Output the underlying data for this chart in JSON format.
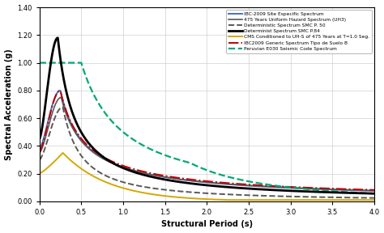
{
  "xlabel": "Structural Period (s)",
  "ylabel": "Spectral Acceleration (g)",
  "xlim": [
    0.0,
    4.0
  ],
  "ylim": [
    0.0,
    1.4
  ],
  "xticks": [
    0.0,
    0.5,
    1.0,
    1.5,
    2.0,
    2.5,
    3.0,
    3.5,
    4.0
  ],
  "yticks": [
    0.0,
    0.2,
    0.4,
    0.6,
    0.8,
    1.0,
    1.2,
    1.4
  ],
  "legend_entries": [
    "IBC-2009 Site Especific Spectrum",
    "475 Years Uniform Hazard Spectrum (UH3)",
    "Deterministic Spectrum SMC P. 50",
    "Determinist Spectrum SMC P.84",
    "CMS Conditioned to UH-S of 475 Years at T=1.0 Seg.",
    "IBC2009 Generic Spectrum Tipo de Suelo B",
    "Peruvian E030 Seismic Code Spectrum"
  ],
  "colors": [
    "#4472c4",
    "#595959",
    "#595959",
    "#000000",
    "#d4a800",
    "#c00000",
    "#00a878"
  ],
  "linestyles": [
    "-",
    "-",
    "--",
    "-",
    "-",
    "-.",
    "--"
  ],
  "linewidths": [
    1.4,
    1.2,
    1.4,
    2.0,
    1.4,
    1.4,
    1.6
  ]
}
